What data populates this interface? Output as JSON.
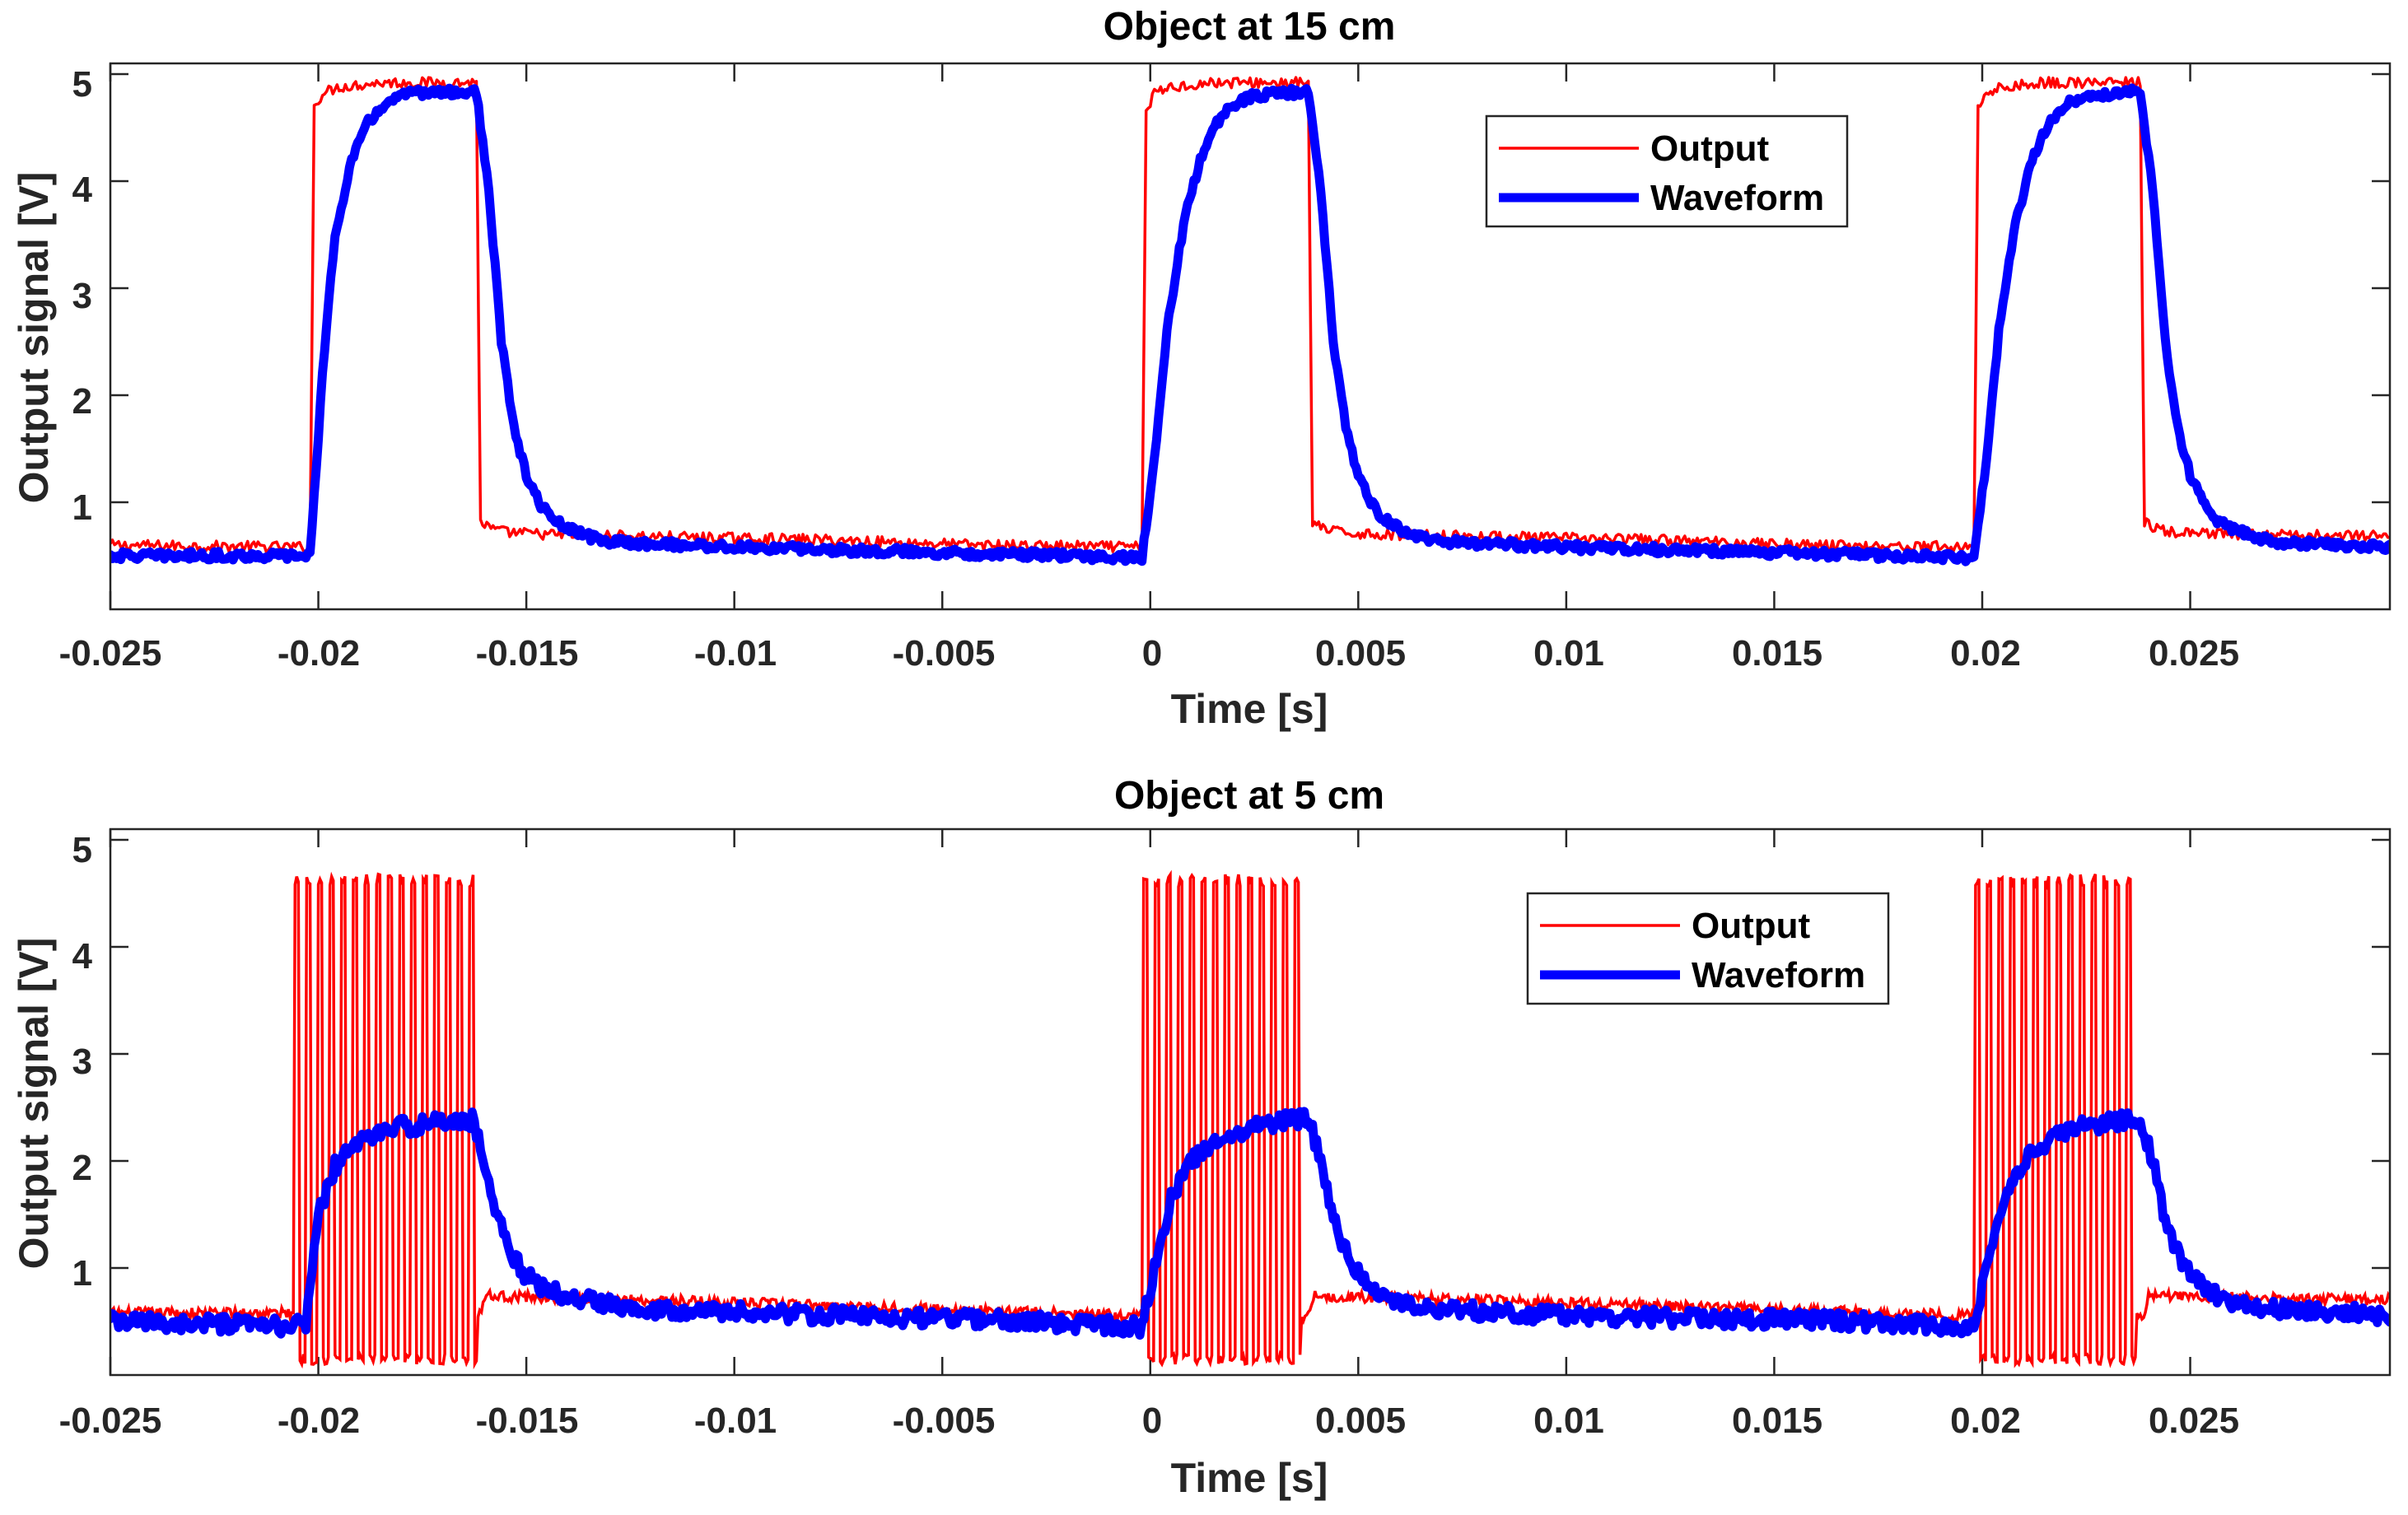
{
  "chart_data": [
    {
      "type": "line",
      "title": "Object at 15 cm",
      "xlabel": "Time [s]",
      "ylabel": "Output signal [V]",
      "xlim": [
        -0.025,
        0.0298
      ],
      "ylim": [
        0,
        5.1
      ],
      "xticks": [
        -0.025,
        -0.02,
        -0.015,
        -0.01,
        -0.005,
        0,
        0.005,
        0.01,
        0.015,
        0.02,
        0.025
      ],
      "xtick_labels": [
        "-0.025",
        "-0.02",
        "-0.015",
        "-0.01",
        "-0.005",
        "0",
        "0.005",
        "0.01",
        "0.015",
        "0.02",
        "0.025"
      ],
      "yticks": [
        1,
        2,
        3,
        4,
        5
      ],
      "ytick_labels": [
        "1",
        "2",
        "3",
        "4",
        "5"
      ],
      "legend": {
        "position": "upper-center-right",
        "entries": [
          "Output",
          "Waveform"
        ]
      },
      "series": [
        {
          "name": "Output",
          "color": "#ff0000",
          "x": [
            -0.025,
            -0.0202,
            -0.0201,
            -0.0199,
            -0.0195,
            -0.0185,
            -0.0162,
            -0.01615,
            -0.0161,
            -0.0159,
            -0.0155,
            -0.0145,
            -0.012,
            -0.008,
            -0.004,
            -0.0002,
            -0.0001,
            0.0001,
            0.0005,
            0.0015,
            0.0038,
            0.00385,
            0.0039,
            0.0041,
            0.0045,
            0.0055,
            0.008,
            0.012,
            0.016,
            0.0198,
            0.0199,
            0.0201,
            0.0205,
            0.0215,
            0.0238,
            0.02385,
            0.0239,
            0.0241,
            0.0245,
            0.0255,
            0.0298
          ],
          "y": [
            0.6,
            0.58,
            4.7,
            4.82,
            4.88,
            4.92,
            4.92,
            2.8,
            0.82,
            0.76,
            0.72,
            0.7,
            0.68,
            0.65,
            0.6,
            0.58,
            4.65,
            4.82,
            4.88,
            4.92,
            4.92,
            2.8,
            0.82,
            0.76,
            0.72,
            0.7,
            0.68,
            0.65,
            0.6,
            0.58,
            4.7,
            4.82,
            4.88,
            4.92,
            4.92,
            2.8,
            0.82,
            0.76,
            0.72,
            0.7,
            0.68
          ],
          "noise_amplitude": 0.05
        },
        {
          "name": "Waveform",
          "color": "#0000ff",
          "x": [
            -0.025,
            -0.0205,
            -0.0202,
            -0.0199,
            -0.0196,
            -0.0192,
            -0.0188,
            -0.0184,
            -0.018,
            -0.0175,
            -0.0165,
            -0.0162,
            -0.0159,
            -0.0156,
            -0.0153,
            -0.015,
            -0.0147,
            -0.0144,
            -0.014,
            -0.0135,
            -0.013,
            -0.01,
            -0.006,
            -0.002,
            -0.0002,
            0.0001,
            0.0004,
            0.0008,
            0.0012,
            0.0016,
            0.002,
            0.0025,
            0.0035,
            0.0038,
            0.0041,
            0.0044,
            0.0047,
            0.005,
            0.0053,
            0.0056,
            0.006,
            0.0065,
            0.007,
            0.01,
            0.014,
            0.018,
            0.0198,
            0.0201,
            0.0204,
            0.0208,
            0.0212,
            0.0216,
            0.022,
            0.0225,
            0.0235,
            0.0238,
            0.0241,
            0.0244,
            0.0247,
            0.025,
            0.0253,
            0.0256,
            0.026,
            0.0265,
            0.027,
            0.0298
          ],
          "y": [
            0.5,
            0.5,
            0.5,
            2.2,
            3.5,
            4.2,
            4.55,
            4.72,
            4.8,
            4.83,
            4.83,
            4.83,
            3.9,
            2.5,
            1.7,
            1.25,
            1.0,
            0.85,
            0.75,
            0.68,
            0.63,
            0.58,
            0.54,
            0.5,
            0.48,
            1.4,
            2.6,
            3.6,
            4.2,
            4.55,
            4.72,
            4.8,
            4.83,
            4.83,
            3.9,
            2.5,
            1.7,
            1.25,
            1.0,
            0.85,
            0.75,
            0.68,
            0.63,
            0.58,
            0.54,
            0.5,
            0.48,
            1.4,
            2.6,
            3.6,
            4.2,
            4.55,
            4.72,
            4.8,
            4.83,
            4.83,
            3.9,
            2.5,
            1.7,
            1.25,
            1.0,
            0.85,
            0.75,
            0.68,
            0.63,
            0.58
          ],
          "noise_amplitude": 0.04
        }
      ]
    },
    {
      "type": "line",
      "title": "Object at 5 cm",
      "xlabel": "Time [s]",
      "ylabel": "Output signal [V]",
      "xlim": [
        -0.025,
        0.0298
      ],
      "ylim": [
        0,
        5.1
      ],
      "xticks": [
        -0.025,
        -0.02,
        -0.015,
        -0.01,
        -0.005,
        0,
        0.005,
        0.01,
        0.015,
        0.02,
        0.025
      ],
      "xtick_labels": [
        "-0.025",
        "-0.02",
        "-0.015",
        "-0.01",
        "-0.005",
        "0",
        "0.005",
        "0.01",
        "0.015",
        "0.02",
        "0.025"
      ],
      "yticks": [
        1,
        2,
        3,
        4,
        5
      ],
      "ytick_labels": [
        "1",
        "2",
        "3",
        "4",
        "5"
      ],
      "legend": {
        "position": "upper-center-right",
        "entries": [
          "Output",
          "Waveform"
        ]
      },
      "series": [
        {
          "name": "Output",
          "color": "#ff0000",
          "baseline_x": [
            -0.025,
            -0.0206,
            -0.0161,
            -0.016,
            -0.012,
            -0.008,
            -0.004,
            -0.0002,
            0.0038,
            0.0039,
            0.008,
            0.012,
            0.016,
            0.0198,
            0.0239,
            0.024,
            0.0298
          ],
          "baseline_y": [
            0.58,
            0.58,
            0.58,
            0.74,
            0.7,
            0.65,
            0.6,
            0.55,
            0.55,
            0.74,
            0.7,
            0.65,
            0.6,
            0.55,
            0.55,
            0.74,
            0.7
          ],
          "burst_windows": [
            [
              -0.0206,
              -0.0162
            ],
            [
              -0.0002,
              0.0036
            ],
            [
              0.0198,
              0.0237
            ]
          ],
          "burst_high": 4.62,
          "burst_low": 0.1,
          "burst_pulse_period": 0.00028,
          "noise_amplitude": 0.05
        },
        {
          "name": "Waveform",
          "color": "#0000ff",
          "x": [
            -0.025,
            -0.0206,
            -0.0203,
            -0.02,
            -0.0196,
            -0.019,
            -0.018,
            -0.0165,
            -0.0163,
            -0.016,
            -0.0157,
            -0.0154,
            -0.015,
            -0.0145,
            -0.014,
            -0.012,
            -0.008,
            -0.004,
            -0.0002,
            0.0001,
            0.0005,
            0.001,
            0.0016,
            0.0025,
            0.0036,
            0.0038,
            0.0041,
            0.0044,
            0.0048,
            0.0053,
            0.0058,
            0.006,
            0.009,
            0.013,
            0.017,
            0.0198,
            0.0201,
            0.0205,
            0.021,
            0.0216,
            0.0225,
            0.0236,
            0.0238,
            0.0241,
            0.0244,
            0.0248,
            0.0253,
            0.0258,
            0.026,
            0.0298
          ],
          "y": [
            0.5,
            0.45,
            0.5,
            1.5,
            1.95,
            2.2,
            2.32,
            2.38,
            2.38,
            2.0,
            1.5,
            1.15,
            0.92,
            0.8,
            0.72,
            0.62,
            0.56,
            0.52,
            0.45,
            1.0,
            1.65,
            2.0,
            2.2,
            2.33,
            2.4,
            2.4,
            2.0,
            1.45,
            1.05,
            0.82,
            0.7,
            0.65,
            0.57,
            0.53,
            0.5,
            0.45,
            1.0,
            1.65,
            2.0,
            2.2,
            2.33,
            2.4,
            2.4,
            2.0,
            1.45,
            1.05,
            0.82,
            0.7,
            0.65,
            0.56
          ],
          "noise_amplitude": 0.08
        }
      ]
    }
  ]
}
